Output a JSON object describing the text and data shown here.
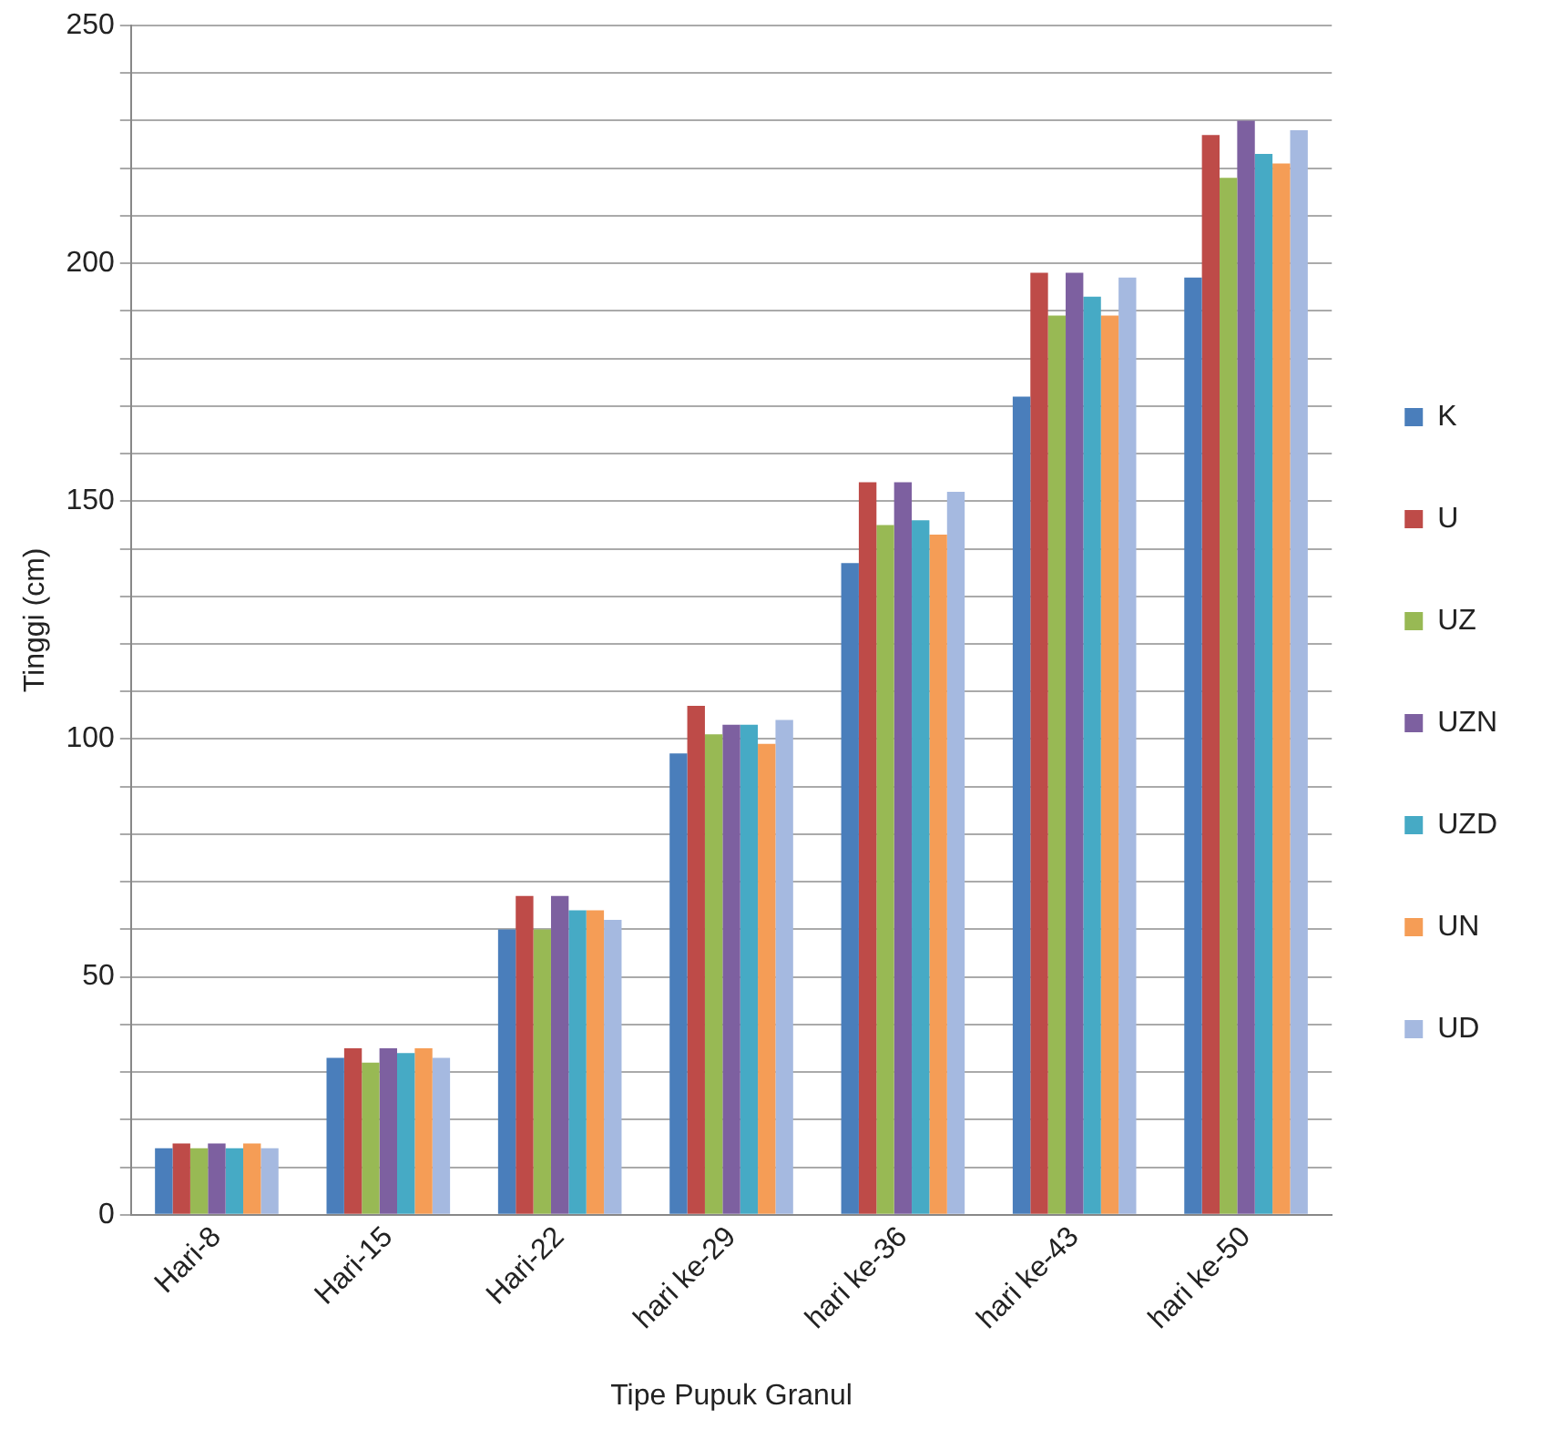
{
  "chart_data": {
    "type": "bar",
    "xlabel": "Tipe Pupuk Granul",
    "ylabel": "Tinggi (cm)",
    "categories": [
      "Hari-8",
      "Hari-15",
      "Hari-22",
      "hari ke-29",
      "hari ke-36",
      "hari ke-43",
      "hari ke-50"
    ],
    "series": [
      {
        "name": "K",
        "color": "#4a7ebb",
        "values": [
          14,
          33,
          60,
          97,
          137,
          172,
          197
        ]
      },
      {
        "name": "U",
        "color": "#be4b48",
        "values": [
          15,
          35,
          67,
          107,
          154,
          198,
          227
        ]
      },
      {
        "name": "UZ",
        "color": "#98b954",
        "values": [
          14,
          32,
          60,
          101,
          145,
          189,
          218
        ]
      },
      {
        "name": "UZN",
        "color": "#7d60a0",
        "values": [
          15,
          35,
          67,
          103,
          154,
          198,
          230
        ]
      },
      {
        "name": "UZD",
        "color": "#46aac5",
        "values": [
          14,
          34,
          64,
          103,
          146,
          193,
          223
        ]
      },
      {
        "name": "UN",
        "color": "#f59d56",
        "values": [
          15,
          35,
          64,
          99,
          143,
          189,
          221
        ]
      },
      {
        "name": "UD",
        "color": "#a5b9e0",
        "values": [
          14,
          33,
          62,
          104,
          152,
          197,
          228
        ]
      }
    ],
    "ylim": [
      0,
      250
    ],
    "yticks": [
      0,
      {
        "value": 10,
        "label": null
      },
      {
        "value": 20,
        "label": null
      },
      {
        "value": 30,
        "label": null
      },
      {
        "value": 40,
        "label": null
      },
      50,
      {
        "value": 60,
        "label": null
      },
      {
        "value": 70,
        "label": null
      },
      {
        "value": 80,
        "label": null
      },
      {
        "value": 90,
        "label": null
      },
      100,
      {
        "value": 110,
        "label": null
      },
      {
        "value": 120,
        "label": null
      },
      {
        "value": 130,
        "label": null
      },
      {
        "value": 140,
        "label": null
      },
      150,
      {
        "value": 160,
        "label": null
      },
      {
        "value": 170,
        "label": null
      },
      {
        "value": 180,
        "label": null
      },
      {
        "value": 190,
        "label": null
      },
      200,
      {
        "value": 210,
        "label": null
      },
      {
        "value": 220,
        "label": null
      },
      {
        "value": 230,
        "label": null
      },
      {
        "value": 240,
        "label": null
      },
      250
    ],
    "grid": "y",
    "legend": "right"
  }
}
